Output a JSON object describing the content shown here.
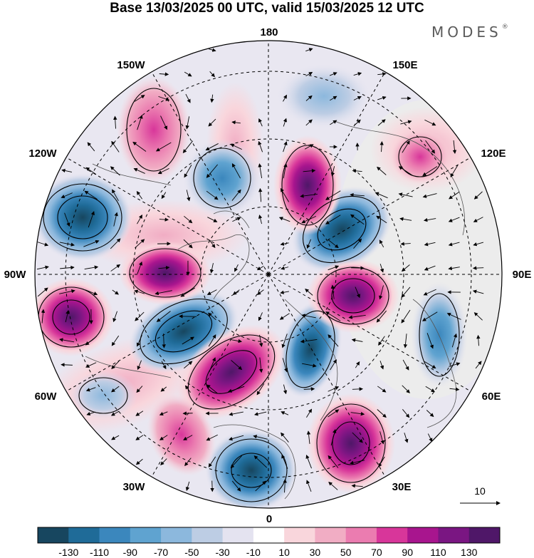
{
  "title": "Base 13/03/2025 00 UTC, valid 15/03/2025 12 UTC",
  "brand": "MODES",
  "brand_mark": "®",
  "longitude_labels": {
    "top": "180",
    "top_left": "150W",
    "top_right": "150E",
    "upper_left": "120W",
    "upper_right": "120E",
    "left": "90W",
    "right": "90E",
    "lower_left": "60W",
    "lower_right": "60E",
    "bottom_left": "30W",
    "bottom_right": "30E",
    "bottom": "0"
  },
  "vector_reference": {
    "label": "10"
  },
  "colorbar": {
    "labels": [
      "-130",
      "-110",
      "-90",
      "-70",
      "-50",
      "-30",
      "-10",
      "10",
      "30",
      "50",
      "70",
      "90",
      "110",
      "130"
    ],
    "colors": [
      "#17465f",
      "#1f6b98",
      "#3b87bd",
      "#5fa3d0",
      "#8cb8dd",
      "#bdcde4",
      "#e4e3f0",
      "#ffffff",
      "#f9d6dc",
      "#f1adc4",
      "#eb7cb0",
      "#d8369a",
      "#a8158e",
      "#7a1682",
      "#4f1768"
    ]
  },
  "colors": {
    "land_background": "#ededed",
    "grid": "#000000"
  }
}
